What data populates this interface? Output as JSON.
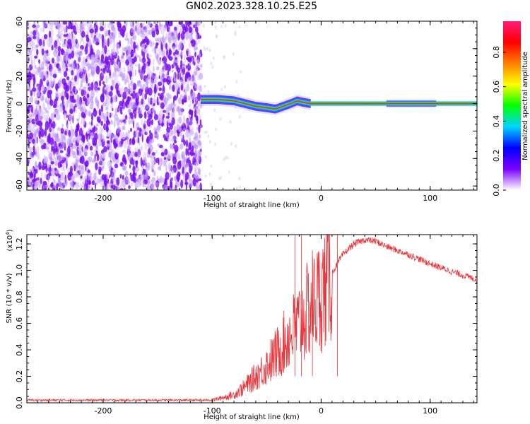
{
  "title": "GN02.2023.328.10.25.E25",
  "colors": {
    "snr_line": "#e8343a",
    "colorbar": [
      "#ffffff",
      "#7b00ff",
      "#0000ff",
      "#00d5ff",
      "#00ff00",
      "#ffff00",
      "#ff7f00",
      "#ff0000",
      "#ff1a7a"
    ]
  },
  "chart_data": [
    {
      "type": "heatmap",
      "xlabel": "Height of straight line (km)",
      "ylabel": "Frequency (Hz)",
      "xlim": [
        -270,
        143
      ],
      "ylim": [
        -63,
        60
      ],
      "xticks": [
        -200,
        -100,
        0,
        100
      ],
      "yticks": [
        60,
        40,
        20,
        0,
        -20,
        -40,
        -60
      ],
      "noise_region_x": [
        -270,
        -110
      ],
      "ridge": [
        {
          "x": -110,
          "y": 3
        },
        {
          "x": -95,
          "y": 3
        },
        {
          "x": -80,
          "y": 2
        },
        {
          "x": -70,
          "y": 0
        },
        {
          "x": -60,
          "y": -2
        },
        {
          "x": -50,
          "y": -3
        },
        {
          "x": -42,
          "y": -4
        },
        {
          "x": -35,
          "y": -2
        },
        {
          "x": -28,
          "y": 0
        },
        {
          "x": -22,
          "y": 2
        },
        {
          "x": -17,
          "y": 1
        },
        {
          "x": -10,
          "y": 0
        },
        {
          "x": 143,
          "y": 0
        }
      ],
      "colorbar": {
        "label": "Normalized spectral amplitude",
        "ticks": [
          "0.0",
          "0.2",
          "0.4",
          "0.6",
          "0.8"
        ],
        "range": [
          0,
          0.98
        ]
      }
    },
    {
      "type": "line",
      "xlabel": "Height of straight line (km)",
      "ylabel": "SNR (10 * v/v)",
      "multiplier": "(x10",
      "multiplier_exp": "4",
      "multiplier_close": ")",
      "xlim": [
        -270,
        143
      ],
      "ylim": [
        0,
        1.27
      ],
      "xticks": [
        -200,
        -100,
        0,
        100
      ],
      "yticks": [
        "0.0",
        "0.2",
        "0.4",
        "0.6",
        "0.8",
        "1.0",
        "1.2"
      ],
      "series": [
        {
          "x": [
            -270,
            -100,
            -90,
            -80,
            -70,
            -60,
            -50,
            -40,
            -30,
            -20,
            -10,
            0,
            10,
            20,
            30,
            40,
            50,
            60,
            80,
            100,
            120,
            143
          ],
          "y": [
            0.02,
            0.02,
            0.04,
            0.06,
            0.12,
            0.2,
            0.28,
            0.38,
            0.5,
            0.6,
            0.72,
            0.82,
            0.98,
            1.12,
            1.2,
            1.23,
            1.22,
            1.18,
            1.12,
            1.05,
            0.99,
            0.93
          ]
        }
      ]
    }
  ]
}
